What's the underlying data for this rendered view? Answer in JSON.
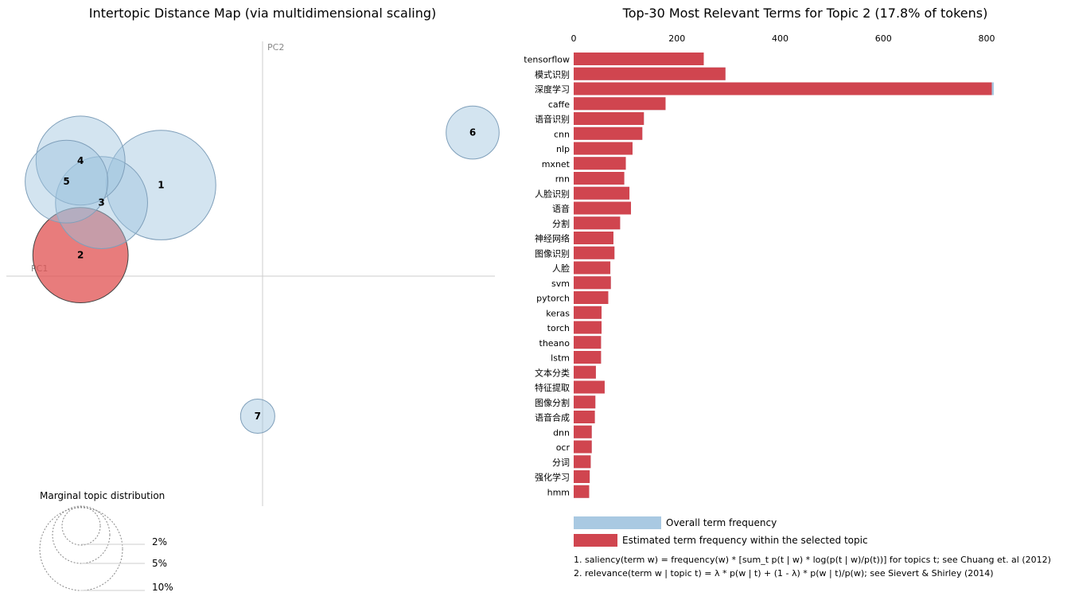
{
  "left_panel": {
    "title": "Intertopic Distance Map (via multidimensional scaling)",
    "pc1_label": "PC1",
    "pc2_label": "PC2",
    "marginal_title": "Marginal topic distribution",
    "marginal_levels": [
      "2%",
      "5%",
      "10%"
    ]
  },
  "right_panel": {
    "title": "Top-30 Most Relevant Terms for Topic 2 (17.8% of tokens)",
    "legend_overall": "Overall term frequency",
    "legend_estimated": "Estimated term frequency within the selected topic",
    "note_saliency": "1. saliency(term w) = frequency(w) * [sum_t p(t | w) * log(p(t | w)/p(t))] for topics t; see Chuang et. al (2012)",
    "note_relevance": "2. relevance(term w | topic t) = λ * p(w | t) + (1 - λ) * p(w | t)/p(w); see Sievert & Shirley (2014)"
  },
  "colors": {
    "bubble_default": "#9ec3dd",
    "bubble_selected": "#e05050",
    "bar_overall": "#a9c9e2",
    "bar_estimated": "#d0454f",
    "axis_line": "#cccccc"
  },
  "chart_data": [
    {
      "type": "scatter",
      "title": "Intertopic Distance Map (via multidimensional scaling)",
      "xlabel": "PC1",
      "ylabel": "PC2",
      "selected_topic": "2",
      "topics": [
        {
          "label": "1",
          "pc1": -0.145,
          "pc2": 0.13
        },
        {
          "label": "2",
          "pc1": -0.26,
          "pc2": 0.03
        },
        {
          "label": "3",
          "pc1": -0.23,
          "pc2": 0.105
        },
        {
          "label": "4",
          "pc1": -0.26,
          "pc2": 0.165
        },
        {
          "label": "5",
          "pc1": -0.28,
          "pc2": 0.135
        },
        {
          "label": "6",
          "pc1": 0.3,
          "pc2": 0.205
        },
        {
          "label": "7",
          "pc1": -0.007,
          "pc2": -0.2
        }
      ],
      "topic_sizes_pct": {
        "1": 23.5,
        "2": 17.8,
        "3": 16.6,
        "4": 15.5,
        "5": 13.4,
        "6": 5.5,
        "7": 2.3
      }
    },
    {
      "type": "bar",
      "orientation": "horizontal",
      "title": "Top-30 Most Relevant Terms for Topic 2 (17.8% of tokens)",
      "xlim": [
        0,
        820
      ],
      "x_ticks": [
        0,
        200,
        400,
        600,
        800
      ],
      "categories": [
        "tensorflow",
        "模式识别",
        "深度学习",
        "caffe",
        "语音识别",
        "cnn",
        "nlp",
        "mxnet",
        "rnn",
        "人脸识别",
        "语音",
        "分割",
        "神经网络",
        "图像识别",
        "人脸",
        "svm",
        "pytorch",
        "keras",
        "torch",
        "theano",
        "lstm",
        "文本分类",
        "特征提取",
        "图像分割",
        "语音合成",
        "dnn",
        "ocr",
        "分词",
        "强化学习",
        "hmm"
      ],
      "series": [
        {
          "name": "Overall term frequency",
          "values": [
            252,
            294,
            814,
            178,
            136,
            133,
            114,
            101,
            98,
            108,
            111,
            90,
            77,
            79,
            71,
            72,
            67,
            54,
            54,
            53,
            53,
            43,
            60,
            42,
            41,
            35,
            35,
            33,
            31,
            30
          ]
        },
        {
          "name": "Estimated term frequency within the selected topic",
          "values": [
            252,
            294,
            810,
            178,
            136,
            133,
            114,
            101,
            98,
            108,
            111,
            90,
            77,
            79,
            71,
            72,
            67,
            54,
            54,
            53,
            53,
            43,
            60,
            42,
            41,
            35,
            35,
            33,
            31,
            30
          ]
        }
      ]
    }
  ]
}
